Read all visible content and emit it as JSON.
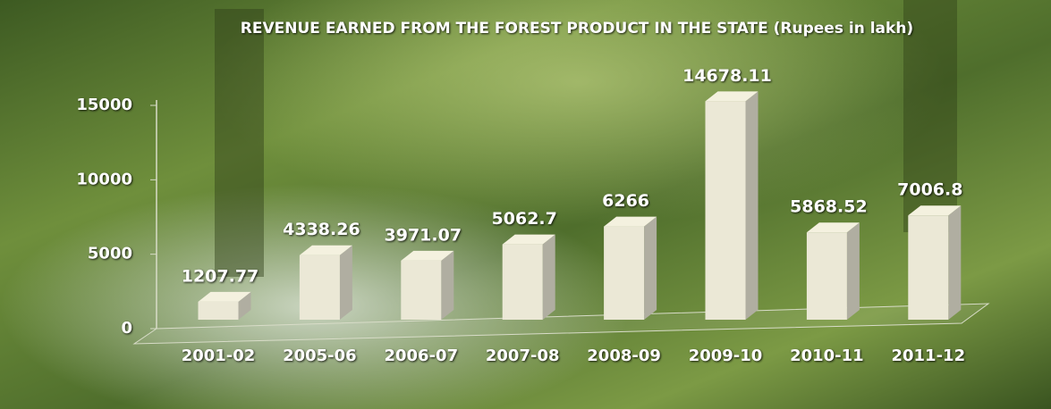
{
  "chart_data": {
    "type": "bar3d",
    "title": "REVENUE EARNED FROM THE FOREST PRODUCT IN THE STATE (Rupees in lakh)",
    "categories": [
      "2001-02",
      "2005-06",
      "2006-07",
      "2007-08",
      "2008-09",
      "2009-10",
      "2010-11",
      "2011-12"
    ],
    "values": [
      1207.77,
      4338.26,
      3971.07,
      5062.7,
      6266,
      14678.11,
      5868.52,
      7006.8
    ],
    "color": "#ebe8d6",
    "ylim": [
      0,
      15000
    ],
    "yticks": [
      0,
      5000,
      10000,
      15000
    ]
  }
}
